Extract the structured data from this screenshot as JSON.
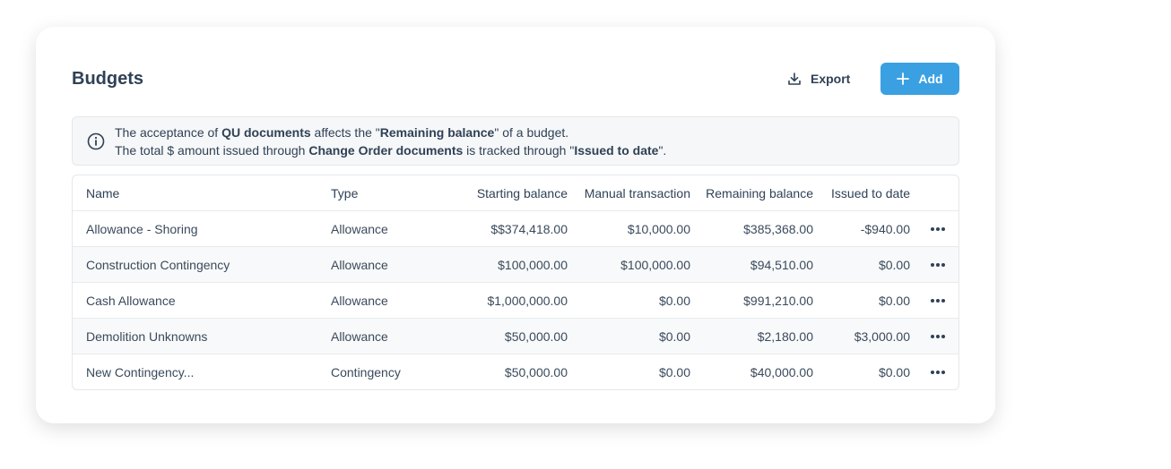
{
  "header": {
    "title": "Budgets",
    "export_button": "Export",
    "add_button": "Add"
  },
  "notice": {
    "lines": [
      [
        "The acceptance of ",
        "QU documents",
        " affects the \"",
        "Remaining balance",
        "\" of a budget."
      ],
      [
        "The total $ amount issued through ",
        "Change Order documents",
        " is tracked through \"",
        "Issued to date",
        "\"."
      ]
    ]
  },
  "table": {
    "columns": [
      "Name",
      "Type",
      "Starting balance",
      "Manual transaction",
      "Remaining balance",
      "Issued to date"
    ],
    "rows": [
      [
        "Allowance - Shoring",
        "Allowance",
        "$$374,418.00",
        "$10,000.00",
        "$385,368.00",
        "-$940.00"
      ],
      [
        "Construction Contingency",
        "Allowance",
        "$100,000.00",
        "$100,000.00",
        "$94,510.00",
        "$0.00"
      ],
      [
        "Cash Allowance",
        "Allowance",
        "$1,000,000.00",
        "$0.00",
        "$991,210.00",
        "$0.00"
      ],
      [
        "Demolition Unknowns",
        "Allowance",
        "$50,000.00",
        "$0.00",
        "$2,180.00",
        "$3,000.00"
      ],
      [
        "New Contingency...",
        "Contingency",
        "$50,000.00",
        "$0.00",
        "$40,000.00",
        "$0.00"
      ]
    ]
  }
}
